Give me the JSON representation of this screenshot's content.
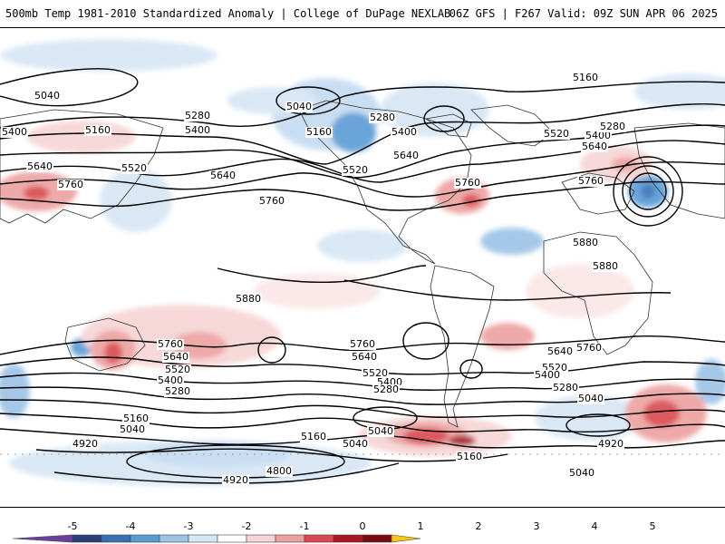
{
  "header": {
    "left": "500mb Temp 1981-2010 Standardized Anomaly | College of DuPage NEXLAB",
    "right": "06Z GFS | F267 Valid: 09Z SUN APR 06 2025"
  },
  "colorbar": {
    "ticks": [
      "-5",
      "-4",
      "-3",
      "-2",
      "-1",
      "0",
      "1",
      "2",
      "3",
      "4",
      "5"
    ],
    "colors": [
      "#6b3fa0",
      "#2c3e7a",
      "#3a6fb5",
      "#5a9bd5",
      "#9cc3e6",
      "#d6e6f5",
      "#ffffff",
      "#f7d4d4",
      "#eda0a0",
      "#d9484e",
      "#a81820",
      "#7a0a10",
      "#f5c518"
    ]
  },
  "contour_labels": [
    "5040",
    "5400",
    "5160",
    "5640",
    "5760",
    "5280",
    "5400",
    "5520",
    "5640",
    "5760",
    "5040",
    "5160",
    "5280",
    "5400",
    "5520",
    "5640",
    "5760",
    "5160",
    "5520",
    "5400",
    "5280",
    "5640",
    "5760",
    "5880",
    "5880",
    "5880",
    "5760",
    "5640",
    "5520",
    "5400",
    "5280",
    "5160",
    "5040",
    "4920",
    "4800",
    "4920",
    "5760",
    "5640",
    "5520",
    "5400",
    "5280",
    "5160",
    "5040",
    "5160",
    "5040",
    "5640",
    "5760",
    "5520",
    "5400",
    "5280",
    "5040",
    "4920",
    "5040"
  ]
}
